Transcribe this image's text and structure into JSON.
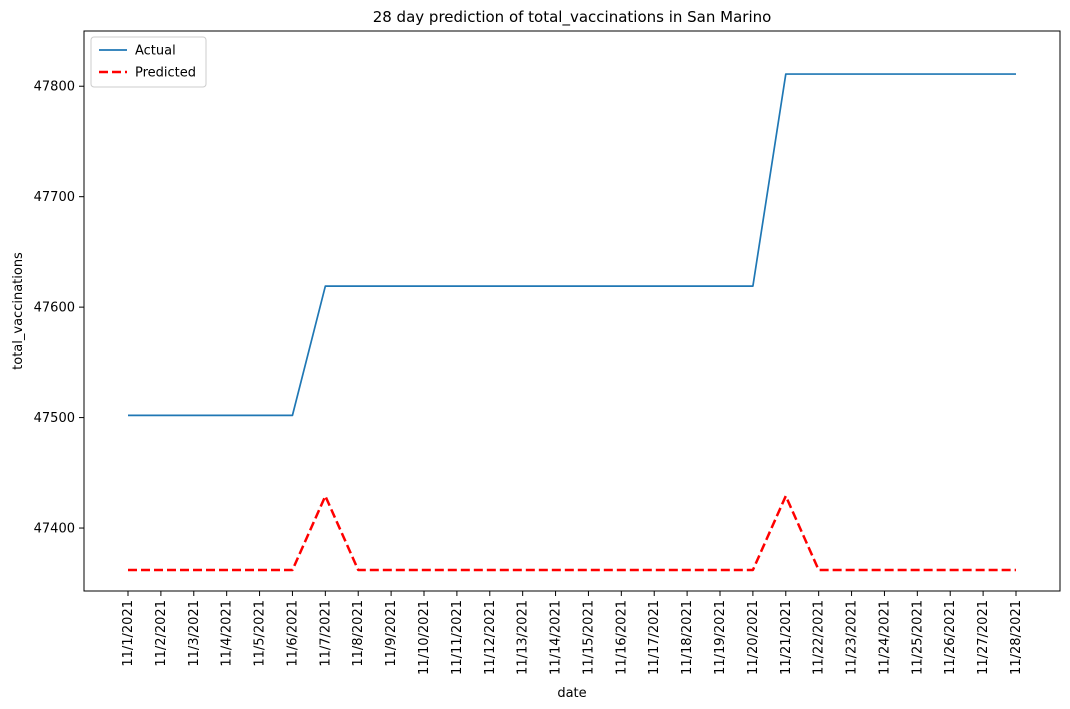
{
  "chart_data": {
    "type": "line",
    "title": "28 day prediction of total_vaccinations in San Marino",
    "xlabel": "date",
    "ylabel": "total_vaccinations",
    "categories": [
      "11/1/2021",
      "11/2/2021",
      "11/3/2021",
      "11/4/2021",
      "11/5/2021",
      "11/6/2021",
      "11/7/2021",
      "11/8/2021",
      "11/9/2021",
      "11/10/2021",
      "11/11/2021",
      "11/12/2021",
      "11/13/2021",
      "11/14/2021",
      "11/15/2021",
      "11/16/2021",
      "11/17/2021",
      "11/18/2021",
      "11/19/2021",
      "11/20/2021",
      "11/21/2021",
      "11/22/2021",
      "11/23/2021",
      "11/24/2021",
      "11/25/2021",
      "11/26/2021",
      "11/27/2021",
      "11/28/2021"
    ],
    "yticks": [
      "47400",
      "47500",
      "47600",
      "47700",
      "47800"
    ],
    "ylim": [
      47343,
      47850
    ],
    "legend_position": "top-left",
    "grid": false,
    "series": [
      {
        "name": "Actual",
        "color": "#1f77b4",
        "style": "solid",
        "values": [
          47502,
          47502,
          47502,
          47502,
          47502,
          47502,
          47619,
          47619,
          47619,
          47619,
          47619,
          47619,
          47619,
          47619,
          47619,
          47619,
          47619,
          47619,
          47619,
          47619,
          47811,
          47811,
          47811,
          47811,
          47811,
          47811,
          47811,
          47811
        ]
      },
      {
        "name": "Predicted",
        "color": "#ff0000",
        "style": "dashed",
        "values": [
          47362,
          47362,
          47362,
          47362,
          47362,
          47362,
          47429,
          47362,
          47362,
          47362,
          47362,
          47362,
          47362,
          47362,
          47362,
          47362,
          47362,
          47362,
          47362,
          47362,
          47429,
          47362,
          47362,
          47362,
          47362,
          47362,
          47362,
          47362
        ]
      }
    ]
  }
}
